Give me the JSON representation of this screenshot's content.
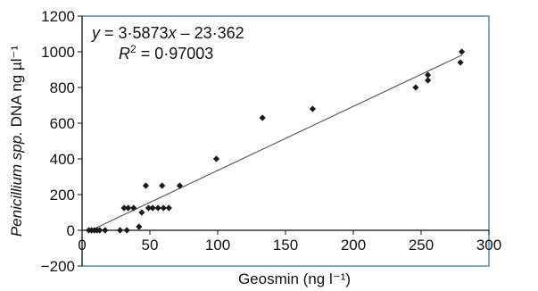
{
  "chart_data": {
    "type": "scatter",
    "title": "",
    "xlabel": "Geosmin (ng l⁻¹)",
    "ylabel_parts": {
      "italic": "Penicillium spp.",
      "rest": " DNA ng µl⁻¹"
    },
    "xlim": [
      0,
      300
    ],
    "ylim": [
      -200,
      1200
    ],
    "x_ticks": [
      0,
      50,
      100,
      150,
      200,
      250,
      300
    ],
    "y_ticks": [
      -200,
      0,
      200,
      400,
      600,
      800,
      1000,
      1200
    ],
    "x_tick_labels": [
      "0",
      "50",
      "100",
      "150",
      "200",
      "250",
      "300"
    ],
    "y_tick_labels": [
      "−200",
      "0",
      "200",
      "400",
      "600",
      "800",
      "1000",
      "1200"
    ],
    "grid": false,
    "legend": "none",
    "marker_color": "#1a1a1a",
    "line_color": "#555555",
    "frame_color": "#2a6fa8",
    "series": [
      {
        "points": [
          {
            "x": 5,
            "y": 0
          },
          {
            "x": 7,
            "y": 0
          },
          {
            "x": 9,
            "y": 0
          },
          {
            "x": 11,
            "y": 0
          },
          {
            "x": 13,
            "y": 0
          },
          {
            "x": 17,
            "y": 0
          },
          {
            "x": 28,
            "y": 0
          },
          {
            "x": 33,
            "y": 0
          },
          {
            "x": 31,
            "y": 125
          },
          {
            "x": 34,
            "y": 125
          },
          {
            "x": 38,
            "y": 125
          },
          {
            "x": 42,
            "y": 20
          },
          {
            "x": 44,
            "y": 100
          },
          {
            "x": 47,
            "y": 250
          },
          {
            "x": 49,
            "y": 125
          },
          {
            "x": 52,
            "y": 125
          },
          {
            "x": 56,
            "y": 125
          },
          {
            "x": 59,
            "y": 250
          },
          {
            "x": 60,
            "y": 125
          },
          {
            "x": 64,
            "y": 125
          },
          {
            "x": 72,
            "y": 250
          },
          {
            "x": 99,
            "y": 400
          },
          {
            "x": 133,
            "y": 630
          },
          {
            "x": 170,
            "y": 680
          },
          {
            "x": 246,
            "y": 800
          },
          {
            "x": 255,
            "y": 840
          },
          {
            "x": 255,
            "y": 870
          },
          {
            "x": 279,
            "y": 940
          },
          {
            "x": 280,
            "y": 1000
          }
        ]
      }
    ],
    "trendline": {
      "slope": 3.5873,
      "intercept": -23.362,
      "x_range": [
        5,
        280
      ]
    },
    "annotations": {
      "equation_lhs": "y",
      "equation_mid": " = 3·5873",
      "equation_x": "x",
      "equation_rhs": " – 23·362",
      "r2_symbol": "R",
      "r2_exponent": "2",
      "r2_value": " = 0·97003"
    }
  }
}
